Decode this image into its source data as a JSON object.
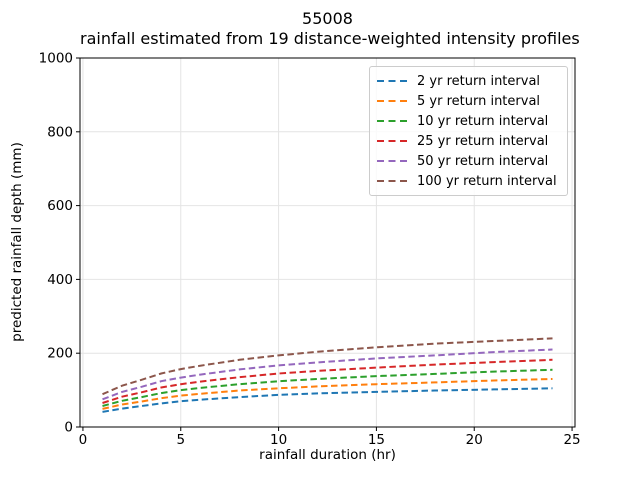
{
  "chart_data": {
    "type": "line",
    "title_lines": [
      "55008",
      "rainfall estimated from 19 distance-weighted intensity profiles"
    ],
    "xlabel": "rainfall duration (hr)",
    "ylabel": "predicted rainfall depth (mm)",
    "x_ticks": [
      0,
      5,
      10,
      15,
      20,
      25
    ],
    "y_ticks": [
      0,
      200,
      400,
      600,
      800,
      1000
    ],
    "xlim": [
      -0.15,
      25.15
    ],
    "ylim": [
      0,
      1000
    ],
    "grid": true,
    "grid_color": "#e4e4e4",
    "axis_color": "#000000",
    "legend_position": "upper right",
    "line_style": "dashed",
    "x": [
      1,
      2,
      3,
      4,
      5,
      6,
      8,
      10,
      12,
      15,
      18,
      21,
      24
    ],
    "series": [
      {
        "id": "2yr",
        "name": "2 yr return interval",
        "color": "#1f77b4",
        "values": [
          41,
          50,
          57,
          64,
          70,
          74,
          81,
          87,
          91,
          95,
          99,
          102,
          105
        ]
      },
      {
        "id": "5yr",
        "name": "5 yr return interval",
        "color": "#ff7f0e",
        "values": [
          49,
          61,
          69,
          78,
          85,
          90,
          99,
          105,
          110,
          116,
          121,
          126,
          130
        ]
      },
      {
        "id": "10yr",
        "name": "10 yr return interval",
        "color": "#2ca02c",
        "values": [
          57,
          71,
          81,
          92,
          100,
          106,
          116,
          124,
          130,
          138,
          144,
          150,
          155
        ]
      },
      {
        "id": "25yr",
        "name": "25 yr return interval",
        "color": "#d62728",
        "values": [
          65,
          82,
          94,
          107,
          116,
          123,
          135,
          145,
          152,
          161,
          169,
          176,
          182
        ]
      },
      {
        "id": "50yr",
        "name": "50 yr return interval",
        "color": "#9467bd",
        "values": [
          75,
          95,
          109,
          124,
          134,
          142,
          156,
          167,
          175,
          186,
          194,
          203,
          210
        ]
      },
      {
        "id": "100yr",
        "name": "100 yr return interval",
        "color": "#8c564b",
        "values": [
          89,
          112,
          128,
          145,
          157,
          166,
          182,
          194,
          204,
          216,
          226,
          233,
          240
        ]
      }
    ]
  }
}
